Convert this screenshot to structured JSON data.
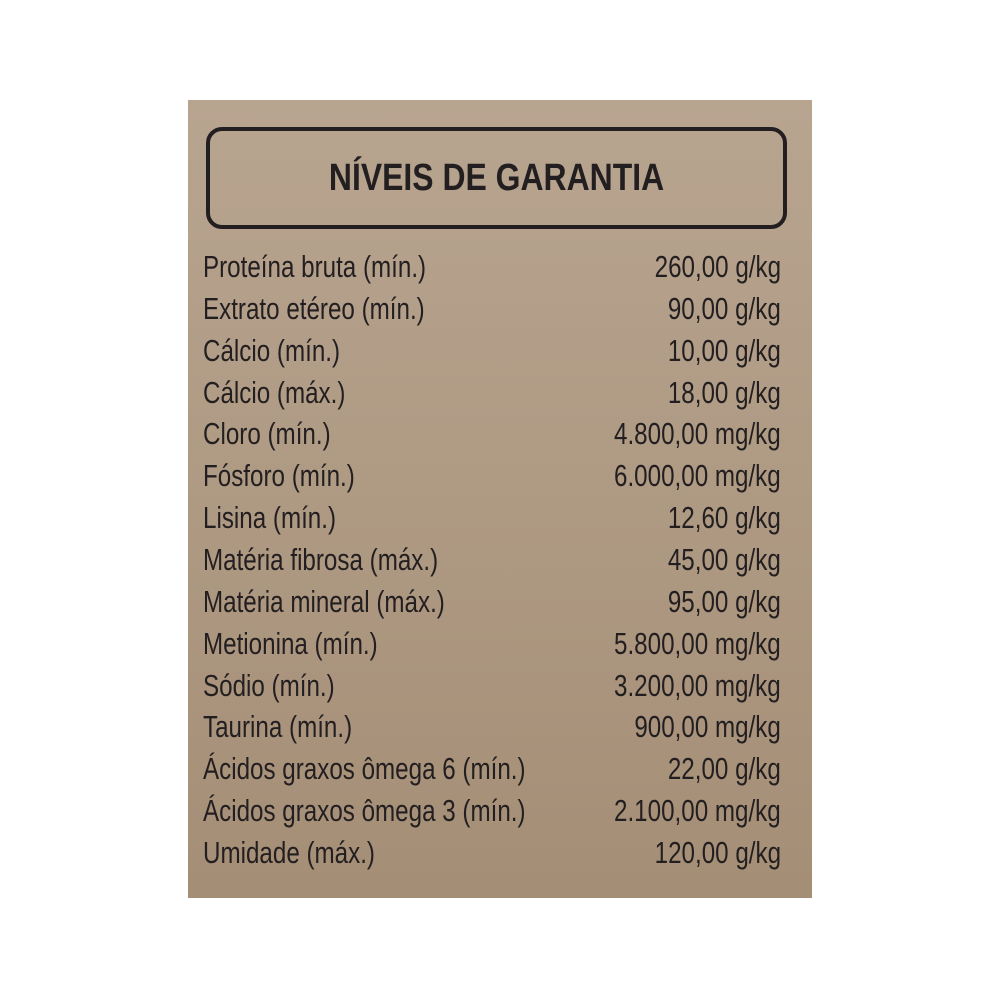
{
  "title": "NÍVEIS DE GARANTIA",
  "colors": {
    "background_top": "#b8a590",
    "background_bottom": "#a58e76",
    "text": "#231f20"
  },
  "rows": [
    {
      "label": "Proteína bruta (mín.)",
      "value": "260,00 g/kg"
    },
    {
      "label": "Extrato etéreo (mín.)",
      "value": "90,00 g/kg"
    },
    {
      "label": "Cálcio (mín.)",
      "value": "10,00 g/kg"
    },
    {
      "label": "Cálcio (máx.)",
      "value": "18,00 g/kg"
    },
    {
      "label": "Cloro (mín.)",
      "value": "4.800,00 mg/kg"
    },
    {
      "label": "Fósforo (mín.)",
      "value": "6.000,00 mg/kg"
    },
    {
      "label": "Lisina (mín.)",
      "value": "12,60 g/kg"
    },
    {
      "label": "Matéria fibrosa (máx.)",
      "value": "45,00 g/kg"
    },
    {
      "label": "Matéria mineral (máx.)",
      "value": "95,00 g/kg"
    },
    {
      "label": "Metionina (mín.)",
      "value": "5.800,00 mg/kg"
    },
    {
      "label": "Sódio (mín.)",
      "value": "3.200,00 mg/kg"
    },
    {
      "label": "Taurina (mín.)",
      "value": "900,00 mg/kg"
    },
    {
      "label": "Ácidos graxos ômega 6 (mín.)",
      "value": "22,00 g/kg"
    },
    {
      "label": "Ácidos graxos ômega 3 (mín.)",
      "value": "2.100,00 mg/kg"
    },
    {
      "label": "Umidade (máx.)",
      "value": "120,00 g/kg"
    }
  ]
}
